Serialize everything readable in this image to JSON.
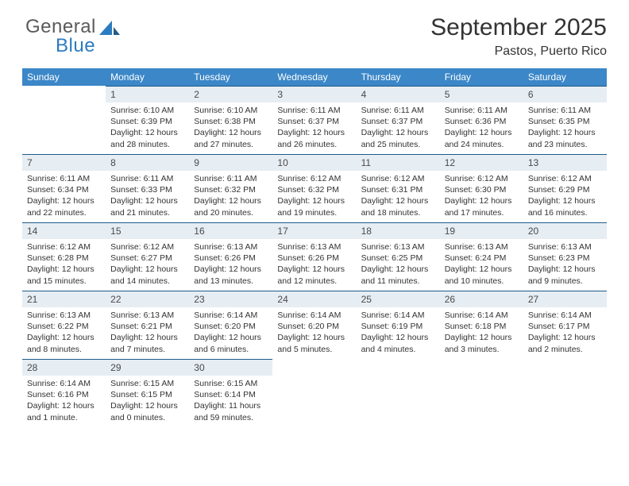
{
  "logo": {
    "word1": "General",
    "word2": "Blue"
  },
  "title": "September 2025",
  "subtitle": "Pastos, Puerto Rico",
  "colors": {
    "header_bg": "#3b87c8",
    "header_fg": "#ffffff",
    "daybar_bg": "#e6edf3",
    "daybar_rule": "#1f5c8b",
    "text": "#333333",
    "logo_gray": "#5a5a5a",
    "logo_blue": "#2b7bbf"
  },
  "days_of_week": [
    "Sunday",
    "Monday",
    "Tuesday",
    "Wednesday",
    "Thursday",
    "Friday",
    "Saturday"
  ],
  "weeks": [
    [
      null,
      {
        "n": "1",
        "sr": "6:10 AM",
        "ss": "6:39 PM",
        "dl": "12 hours and 28 minutes."
      },
      {
        "n": "2",
        "sr": "6:10 AM",
        "ss": "6:38 PM",
        "dl": "12 hours and 27 minutes."
      },
      {
        "n": "3",
        "sr": "6:11 AM",
        "ss": "6:37 PM",
        "dl": "12 hours and 26 minutes."
      },
      {
        "n": "4",
        "sr": "6:11 AM",
        "ss": "6:37 PM",
        "dl": "12 hours and 25 minutes."
      },
      {
        "n": "5",
        "sr": "6:11 AM",
        "ss": "6:36 PM",
        "dl": "12 hours and 24 minutes."
      },
      {
        "n": "6",
        "sr": "6:11 AM",
        "ss": "6:35 PM",
        "dl": "12 hours and 23 minutes."
      }
    ],
    [
      {
        "n": "7",
        "sr": "6:11 AM",
        "ss": "6:34 PM",
        "dl": "12 hours and 22 minutes."
      },
      {
        "n": "8",
        "sr": "6:11 AM",
        "ss": "6:33 PM",
        "dl": "12 hours and 21 minutes."
      },
      {
        "n": "9",
        "sr": "6:11 AM",
        "ss": "6:32 PM",
        "dl": "12 hours and 20 minutes."
      },
      {
        "n": "10",
        "sr": "6:12 AM",
        "ss": "6:32 PM",
        "dl": "12 hours and 19 minutes."
      },
      {
        "n": "11",
        "sr": "6:12 AM",
        "ss": "6:31 PM",
        "dl": "12 hours and 18 minutes."
      },
      {
        "n": "12",
        "sr": "6:12 AM",
        "ss": "6:30 PM",
        "dl": "12 hours and 17 minutes."
      },
      {
        "n": "13",
        "sr": "6:12 AM",
        "ss": "6:29 PM",
        "dl": "12 hours and 16 minutes."
      }
    ],
    [
      {
        "n": "14",
        "sr": "6:12 AM",
        "ss": "6:28 PM",
        "dl": "12 hours and 15 minutes."
      },
      {
        "n": "15",
        "sr": "6:12 AM",
        "ss": "6:27 PM",
        "dl": "12 hours and 14 minutes."
      },
      {
        "n": "16",
        "sr": "6:13 AM",
        "ss": "6:26 PM",
        "dl": "12 hours and 13 minutes."
      },
      {
        "n": "17",
        "sr": "6:13 AM",
        "ss": "6:26 PM",
        "dl": "12 hours and 12 minutes."
      },
      {
        "n": "18",
        "sr": "6:13 AM",
        "ss": "6:25 PM",
        "dl": "12 hours and 11 minutes."
      },
      {
        "n": "19",
        "sr": "6:13 AM",
        "ss": "6:24 PM",
        "dl": "12 hours and 10 minutes."
      },
      {
        "n": "20",
        "sr": "6:13 AM",
        "ss": "6:23 PM",
        "dl": "12 hours and 9 minutes."
      }
    ],
    [
      {
        "n": "21",
        "sr": "6:13 AM",
        "ss": "6:22 PM",
        "dl": "12 hours and 8 minutes."
      },
      {
        "n": "22",
        "sr": "6:13 AM",
        "ss": "6:21 PM",
        "dl": "12 hours and 7 minutes."
      },
      {
        "n": "23",
        "sr": "6:14 AM",
        "ss": "6:20 PM",
        "dl": "12 hours and 6 minutes."
      },
      {
        "n": "24",
        "sr": "6:14 AM",
        "ss": "6:20 PM",
        "dl": "12 hours and 5 minutes."
      },
      {
        "n": "25",
        "sr": "6:14 AM",
        "ss": "6:19 PM",
        "dl": "12 hours and 4 minutes."
      },
      {
        "n": "26",
        "sr": "6:14 AM",
        "ss": "6:18 PM",
        "dl": "12 hours and 3 minutes."
      },
      {
        "n": "27",
        "sr": "6:14 AM",
        "ss": "6:17 PM",
        "dl": "12 hours and 2 minutes."
      }
    ],
    [
      {
        "n": "28",
        "sr": "6:14 AM",
        "ss": "6:16 PM",
        "dl": "12 hours and 1 minute."
      },
      {
        "n": "29",
        "sr": "6:15 AM",
        "ss": "6:15 PM",
        "dl": "12 hours and 0 minutes."
      },
      {
        "n": "30",
        "sr": "6:15 AM",
        "ss": "6:14 PM",
        "dl": "11 hours and 59 minutes."
      },
      null,
      null,
      null,
      null
    ]
  ],
  "labels": {
    "sunrise": "Sunrise:",
    "sunset": "Sunset:",
    "daylight": "Daylight:"
  }
}
